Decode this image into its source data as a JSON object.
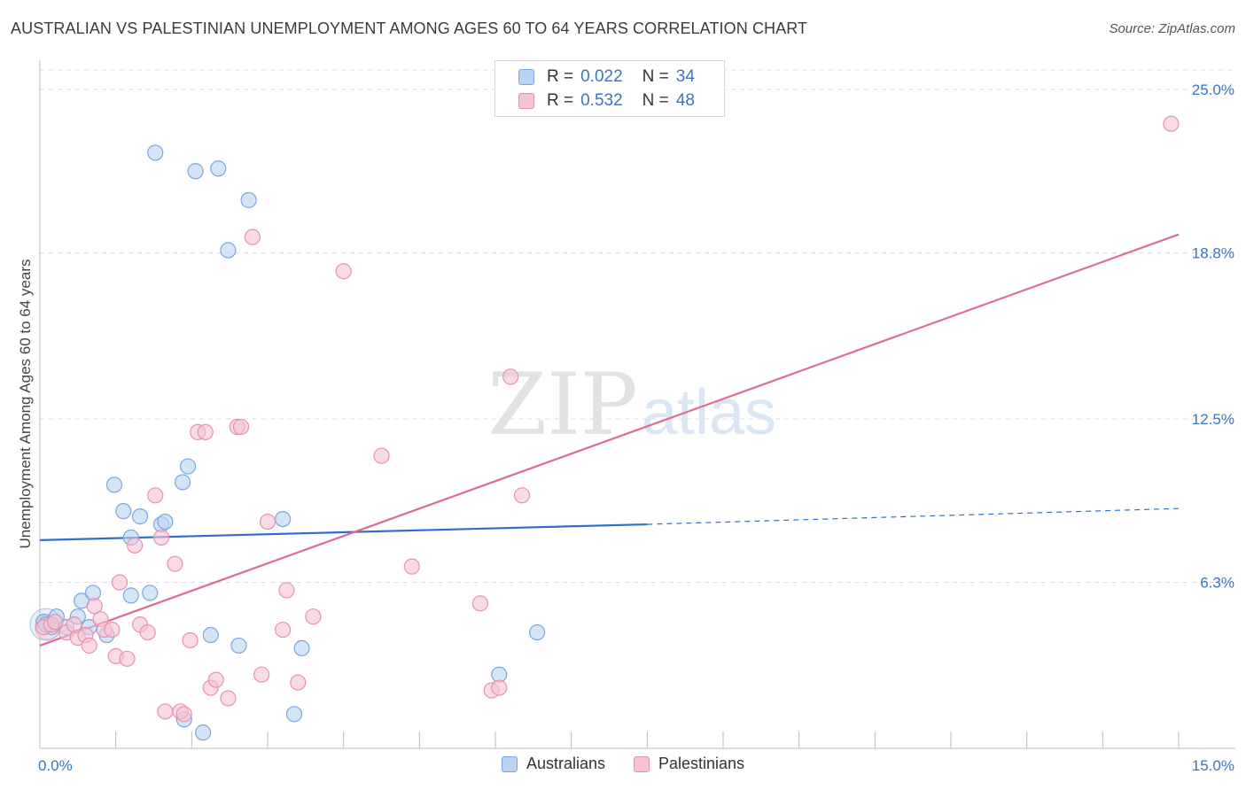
{
  "title": "AUSTRALIAN VS PALESTINIAN UNEMPLOYMENT AMONG AGES 60 TO 64 YEARS CORRELATION CHART",
  "source": "Source: ZipAtlas.com",
  "watermark": {
    "zip": "ZIP",
    "atlas": "atlas"
  },
  "legend": {
    "rows": [
      {
        "r_label": "R =",
        "r_value": "0.022",
        "n_label": "N =",
        "n_value": "34"
      },
      {
        "r_label": "R =",
        "r_value": "0.532",
        "n_label": "N =",
        "n_value": "48"
      }
    ]
  },
  "bottom_legend": {
    "australians": "Australians",
    "palestinians": "Palestinians"
  },
  "colors": {
    "australians_fill": "#b8d3f4",
    "australians_stroke": "#7aa6dc",
    "australians_line": "#2e6fcc",
    "palestinians_fill": "#f7c3d3",
    "palestinians_stroke": "#e891ae",
    "palestinians_line": "#e06a96",
    "tick_label": "#3a74c4",
    "grid": "#dcdcdc"
  },
  "chart_data": {
    "type": "scatter",
    "title": "AUSTRALIAN VS PALESTINIAN UNEMPLOYMENT AMONG AGES 60 TO 64 YEARS CORRELATION CHART",
    "xlabel": "",
    "ylabel": "Unemployment Among Ages 60 to 64 years",
    "xlim": [
      0,
      15
    ],
    "ylim": [
      0,
      25
    ],
    "x_tick_labels": [
      "0.0%",
      "15.0%"
    ],
    "y_ticks": [
      6.3,
      12.5,
      18.8,
      25.0
    ],
    "y_tick_labels": [
      "6.3%",
      "12.5%",
      "18.8%",
      "25.0%"
    ],
    "grid": true,
    "series": [
      {
        "name": "Australians",
        "r": 0.022,
        "n": 34,
        "points": [
          [
            0.05,
            4.8
          ],
          [
            0.15,
            4.6
          ],
          [
            0.22,
            5.0
          ],
          [
            0.35,
            4.6
          ],
          [
            0.5,
            5.0
          ],
          [
            0.55,
            5.6
          ],
          [
            0.65,
            4.6
          ],
          [
            0.7,
            5.9
          ],
          [
            0.88,
            4.3
          ],
          [
            0.98,
            10.0
          ],
          [
            1.1,
            9.0
          ],
          [
            1.2,
            8.0
          ],
          [
            1.2,
            5.8
          ],
          [
            1.32,
            8.8
          ],
          [
            1.45,
            5.9
          ],
          [
            1.6,
            8.5
          ],
          [
            1.65,
            8.6
          ],
          [
            1.52,
            22.6
          ],
          [
            1.9,
            1.1
          ],
          [
            1.88,
            10.1
          ],
          [
            1.95,
            10.7
          ],
          [
            2.05,
            21.9
          ],
          [
            2.15,
            0.6
          ],
          [
            2.25,
            4.3
          ],
          [
            2.35,
            22.0
          ],
          [
            2.48,
            18.9
          ],
          [
            2.62,
            3.9
          ],
          [
            2.75,
            20.8
          ],
          [
            3.2,
            8.7
          ],
          [
            3.35,
            1.3
          ],
          [
            3.45,
            3.8
          ],
          [
            6.05,
            2.8
          ],
          [
            6.55,
            4.4
          ],
          [
            0.08,
            4.7
          ]
        ],
        "trend": {
          "x": [
            0,
            8.0
          ],
          "y": [
            7.9,
            8.5
          ],
          "dashed_to": [
            15,
            9.1
          ]
        }
      },
      {
        "name": "Palestinians",
        "r": 0.532,
        "n": 48,
        "points": [
          [
            0.05,
            4.6
          ],
          [
            0.15,
            4.7
          ],
          [
            0.2,
            4.8
          ],
          [
            0.35,
            4.4
          ],
          [
            0.45,
            4.7
          ],
          [
            0.5,
            4.2
          ],
          [
            0.6,
            4.3
          ],
          [
            0.65,
            3.9
          ],
          [
            0.72,
            5.4
          ],
          [
            0.8,
            4.9
          ],
          [
            0.85,
            4.5
          ],
          [
            0.95,
            4.5
          ],
          [
            1.0,
            3.5
          ],
          [
            1.05,
            6.3
          ],
          [
            1.15,
            3.4
          ],
          [
            1.25,
            7.7
          ],
          [
            1.32,
            4.7
          ],
          [
            1.42,
            4.4
          ],
          [
            1.52,
            9.6
          ],
          [
            1.6,
            8.0
          ],
          [
            1.65,
            1.4
          ],
          [
            1.78,
            7.0
          ],
          [
            1.85,
            1.4
          ],
          [
            1.9,
            1.3
          ],
          [
            1.98,
            4.1
          ],
          [
            2.08,
            12.0
          ],
          [
            2.18,
            12.0
          ],
          [
            2.25,
            2.3
          ],
          [
            2.32,
            2.6
          ],
          [
            2.48,
            1.9
          ],
          [
            2.6,
            12.2
          ],
          [
            2.65,
            12.2
          ],
          [
            2.8,
            19.4
          ],
          [
            2.92,
            2.8
          ],
          [
            3.0,
            8.6
          ],
          [
            3.2,
            4.5
          ],
          [
            3.25,
            6.0
          ],
          [
            3.4,
            2.5
          ],
          [
            3.6,
            5.0
          ],
          [
            4.0,
            18.1
          ],
          [
            4.5,
            11.1
          ],
          [
            4.9,
            6.9
          ],
          [
            5.8,
            5.5
          ],
          [
            5.95,
            2.2
          ],
          [
            6.05,
            2.3
          ],
          [
            6.2,
            14.1
          ],
          [
            6.35,
            9.6
          ],
          [
            14.9,
            23.7
          ]
        ],
        "trend": {
          "x": [
            0,
            15
          ],
          "y": [
            3.9,
            19.5
          ]
        }
      }
    ]
  }
}
